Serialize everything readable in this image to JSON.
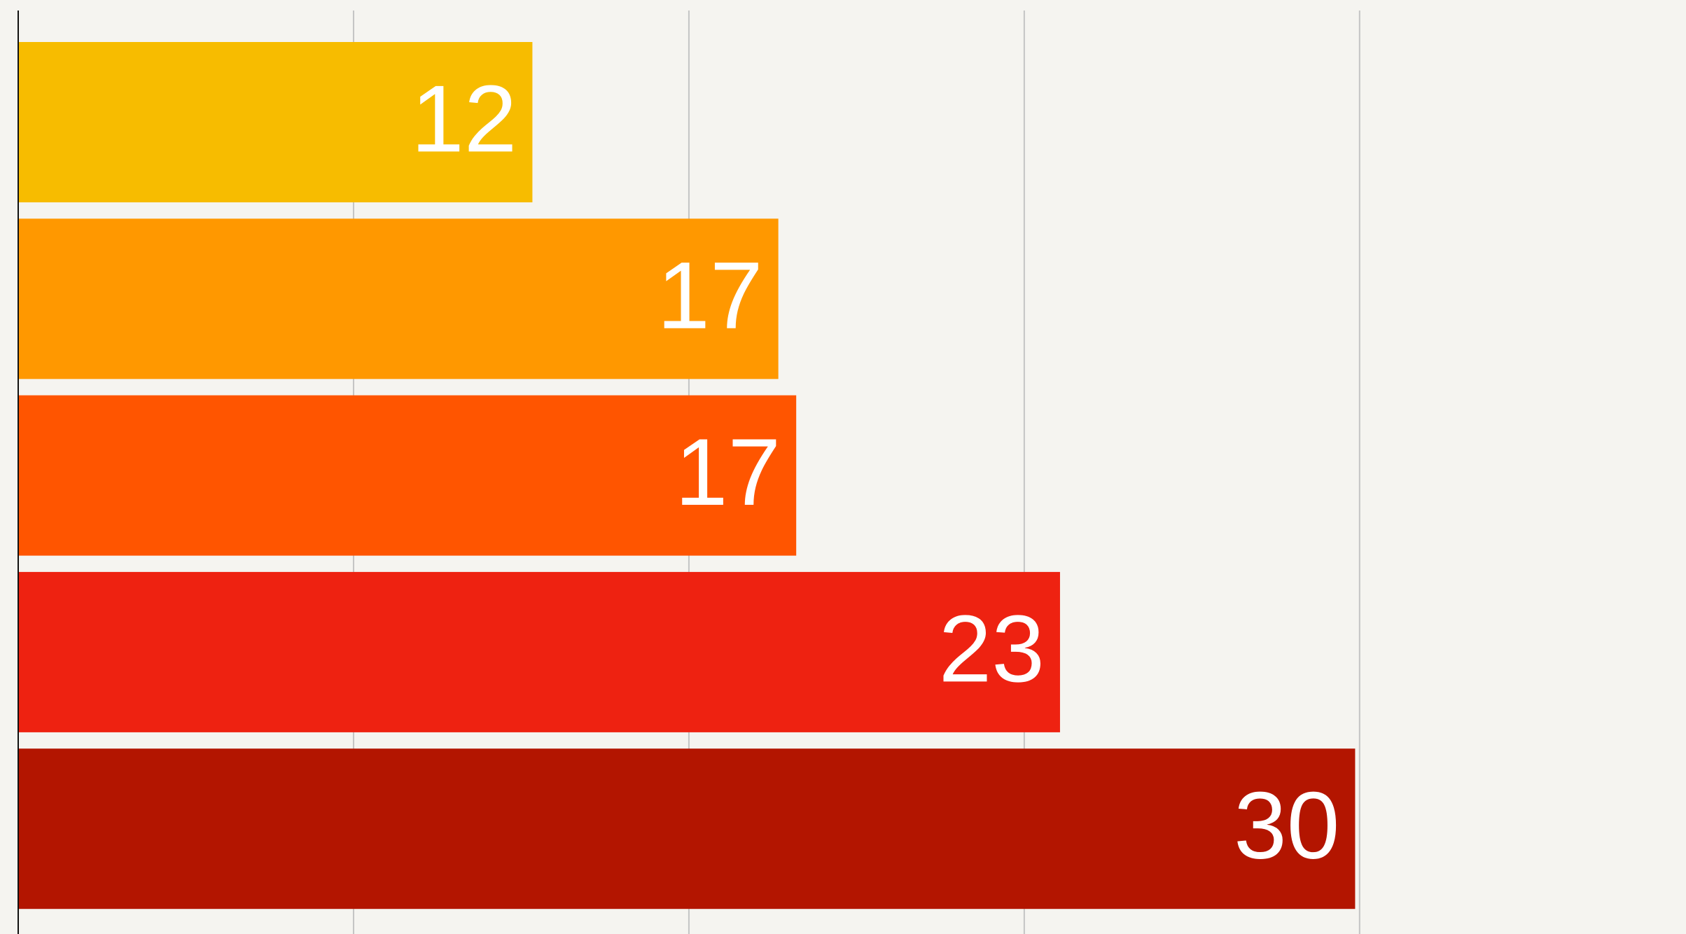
{
  "chart_data": {
    "type": "hbar",
    "values": [
      11.5,
      17,
      17.4,
      23.3,
      29.9
    ],
    "value_labels": [
      "12",
      "17",
      "17",
      "23",
      "30"
    ],
    "colors": [
      "#f7bc00",
      "#ff9800",
      "#ff5500",
      "#ee2211",
      "#b31500"
    ],
    "xlim": [
      0,
      37.3
    ],
    "xticks": [
      0,
      7.5,
      15,
      22.5,
      30
    ],
    "grid": true
  }
}
